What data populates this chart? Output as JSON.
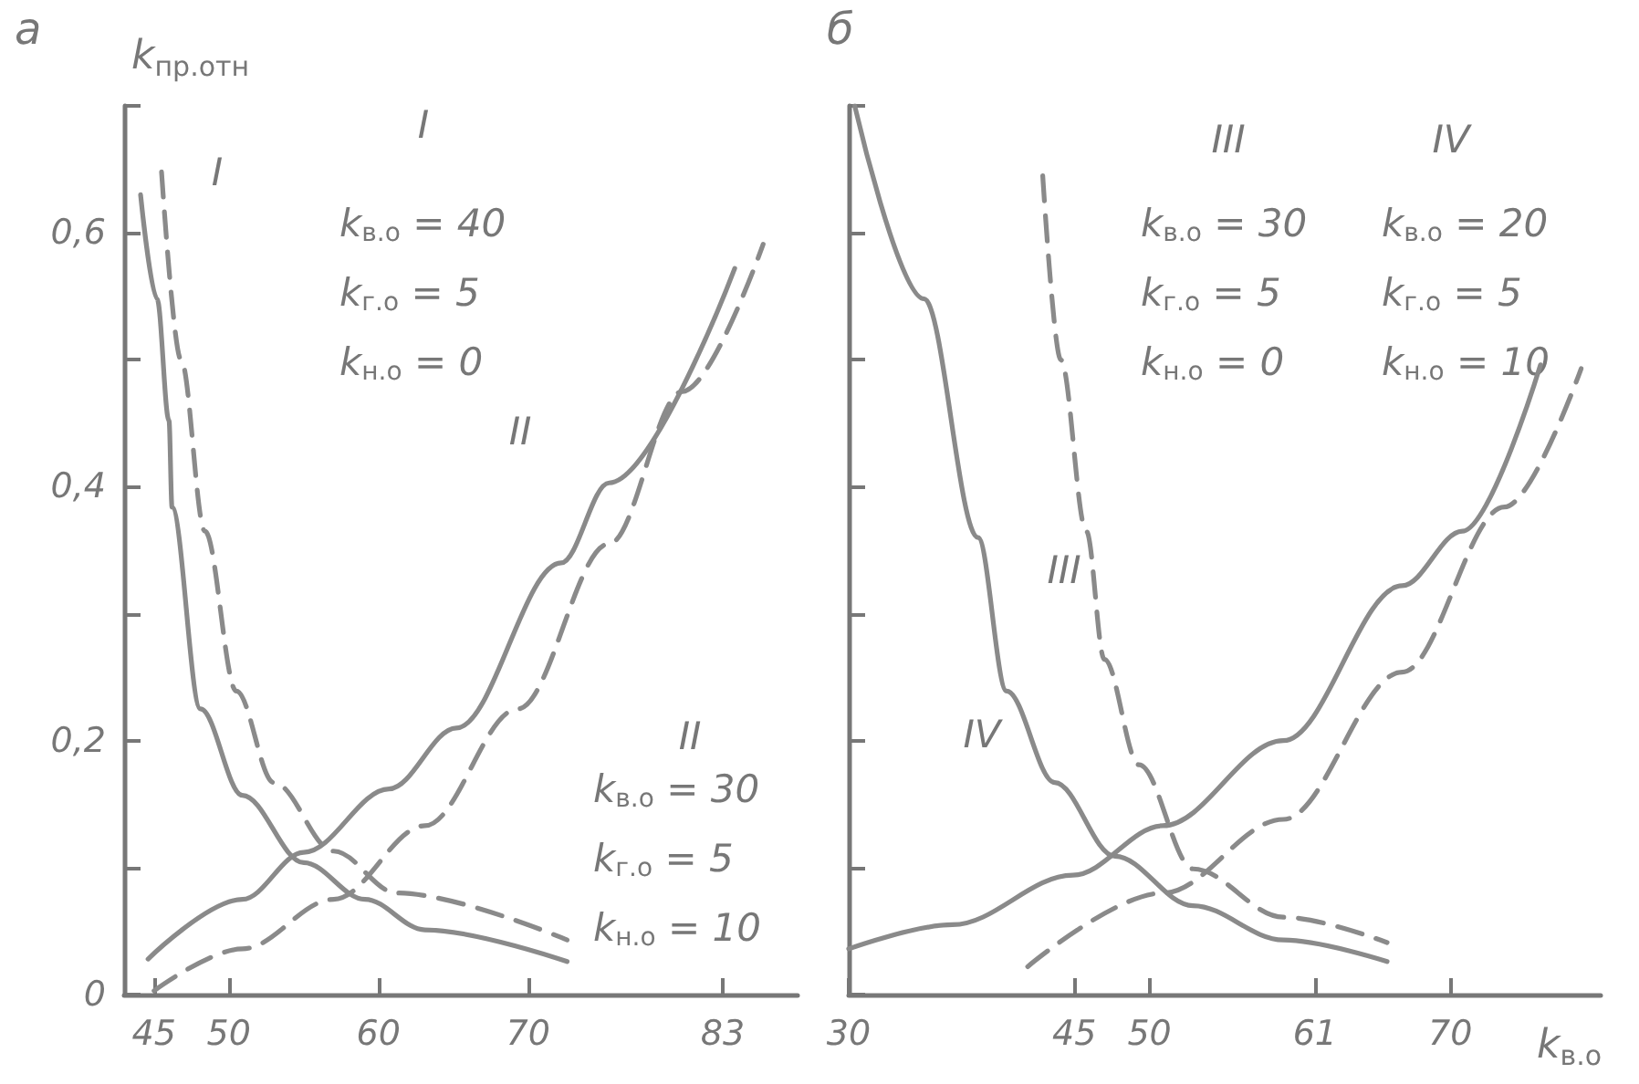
{
  "chart_data": [
    {
      "type": "line",
      "title": "а",
      "ylabel": "k$_{пр.отн}$",
      "xlim": [
        43,
        88
      ],
      "xticks": [
        45,
        50,
        60,
        70,
        83
      ],
      "ylim": [
        0,
        0.7
      ],
      "yticks": [
        0,
        {
          "value": 0.1,
          "label": null
        },
        {
          "value": 0.2,
          "label": "0,2"
        },
        {
          "value": 0.3,
          "label": null
        },
        {
          "value": 0.4,
          "label": "0,4"
        },
        {
          "value": 0.5,
          "label": null
        },
        {
          "value": 0.6,
          "label": "0,6"
        },
        {
          "value": 0.7,
          "label": null
        }
      ],
      "grid": false,
      "marker": "none",
      "series": [
        {
          "color": "#8a8a8a",
          "line_style": "solid",
          "x": [
            44.1,
            45.2,
            46,
            46.2,
            48.1,
            50.9,
            55,
            59.1,
            63.1,
            72.6
          ],
          "values": [
            0.63,
            0.548,
            0.452,
            0.384,
            0.225,
            0.157,
            0.104,
            0.075,
            0.051,
            0.026
          ]
        },
        {
          "color": "#8a8a8a",
          "line_style": "dashed",
          "x": [
            45.5,
            46.8,
            48.4,
            50.5,
            53,
            57,
            61.2,
            72.6
          ],
          "values": [
            0.648,
            0.5,
            0.365,
            0.239,
            0.167,
            0.113,
            0.08,
            0.043
          ]
        },
        {
          "color": "#8a8a8a",
          "line_style": "solid",
          "x": [
            44.6,
            50.9,
            55,
            60.7,
            65.2,
            72.2,
            75.4,
            83.8
          ],
          "values": [
            0.028,
            0.075,
            0.112,
            0.162,
            0.21,
            0.34,
            0.403,
            0.572
          ]
        },
        {
          "color": "#8a8a8a",
          "line_style": "dashed",
          "x": [
            45,
            50.9,
            57,
            63.1,
            69.3,
            75.4,
            80.3,
            85.7
          ],
          "values": [
            0.003,
            0.036,
            0.075,
            0.133,
            0.225,
            0.355,
            0.475,
            0.591
          ]
        }
      ],
      "annotations": [
        "I",
        "k$_{в.о}$ = 40",
        "k$_{г.о}$ = 5",
        "k$_{н.о}$ = 0",
        "II",
        "k$_{в.о}$ = 30",
        "k$_{г.о}$ = 5",
        "k$_{н.о}$ = 10",
        "I",
        "II"
      ]
    },
    {
      "type": "line",
      "title": "б",
      "xlabel": "k$_{в.о}$",
      "xlim": [
        30,
        80
      ],
      "xticks": [
        30,
        45,
        50,
        61,
        70
      ],
      "ylim": [
        0,
        0.7
      ],
      "yticks": [
        0,
        0.1,
        0.2,
        0.3,
        0.4,
        0.5,
        0.6,
        0.7
      ],
      "tick_labels": "x",
      "grid": false,
      "marker": "none",
      "series": [
        {
          "color": "#8a8a8a",
          "line_style": "solid",
          "x": [
            30.4,
            35,
            38.6,
            40.5,
            43.7,
            47.7,
            52.9,
            58.9,
            65.8
          ],
          "values": [
            0.7,
            0.548,
            0.36,
            0.239,
            0.167,
            0.109,
            0.07,
            0.043,
            0.026
          ]
        },
        {
          "color": "#8a8a8a",
          "line_style": "dashed",
          "x": [
            42.9,
            44.1,
            45.8,
            47,
            49.3,
            52.9,
            58.9,
            65.8
          ],
          "values": [
            0.645,
            0.5,
            0.365,
            0.264,
            0.181,
            0.099,
            0.061,
            0.041
          ]
        },
        {
          "color": "#8a8a8a",
          "line_style": "solid",
          "x": [
            30,
            36.9,
            44.9,
            50.9,
            58.9,
            66.8,
            70.8,
            76
          ],
          "values": [
            0.036,
            0.055,
            0.094,
            0.133,
            0.2,
            0.322,
            0.365,
            0.496
          ]
        },
        {
          "color": "#8a8a8a",
          "line_style": "dashed",
          "x": [
            41.9,
            50.9,
            58.9,
            66.8,
            73.6,
            78.7
          ],
          "values": [
            0.022,
            0.08,
            0.138,
            0.254,
            0.384,
            0.493
          ]
        }
      ],
      "annotations": [
        "III",
        "k$_{в.о}$ = 30",
        "k$_{г.о}$ = 5",
        "k$_{н.о}$ = 0",
        "IV",
        "k$_{в.о}$ = 20",
        "k$_{г.о}$ = 5",
        "k$_{н.о}$ = 10",
        "III",
        "IV"
      ]
    }
  ]
}
